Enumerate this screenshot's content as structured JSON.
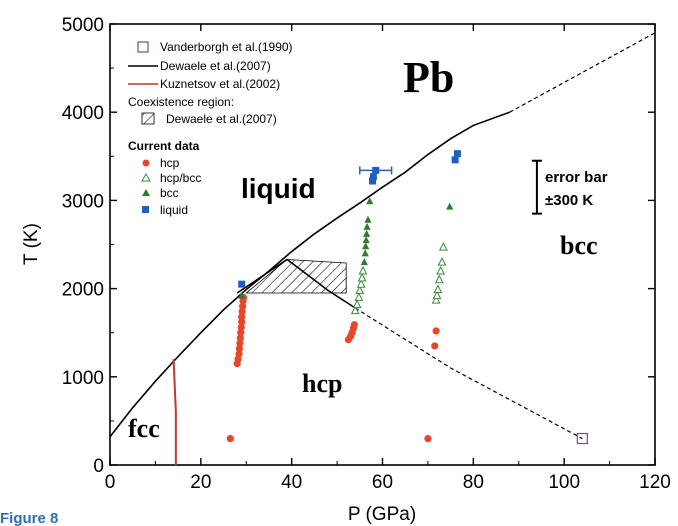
{
  "caption": "Figure 8",
  "chart_data": {
    "type": "scatter",
    "xlabel": "P (GPa)",
    "ylabel": "T (K)",
    "xlim": [
      0,
      120
    ],
    "ylim": [
      0,
      5000
    ],
    "x_ticks": [
      "0",
      "20",
      "40",
      "60",
      "80",
      "100",
      "120"
    ],
    "y_ticks": [
      "0",
      "1000",
      "2000",
      "3000",
      "4000",
      "5000"
    ],
    "element_label": "Pb",
    "phase_labels": [
      "liquid",
      "hcp",
      "bcc",
      "fcc"
    ],
    "error_bar": {
      "label_line1": "error bar",
      "label_line2": "±300 K",
      "half_range": 300,
      "x": 94,
      "y": 3150
    },
    "legend": {
      "position": "top-left",
      "vanderborgh": "Vanderborgh et al.(1990)",
      "dewaele": "Dewaele et al.(2007)",
      "kuznetsov": "Kuznetsov et al.(2002)",
      "coexistence_title": "Coexistence region:",
      "coexistence": "Dewaele et al.(2007)",
      "current_title": "Current data",
      "hcp": "hcp",
      "hcp_bcc": "hcp/bcc",
      "bcc": "bcc",
      "liquid": "liquid"
    },
    "colors": {
      "hcp": "#e8452a",
      "hcp_bcc": "#3a8a3a",
      "bcc": "#2e7d2e",
      "liquid": "#1f5fbf",
      "kuznetsov": "#c0392b",
      "vanderborgh": "#7a4a8a"
    },
    "series": [
      {
        "name": "Dewaele et al.(2007)",
        "style": "melting_line",
        "points": [
          [
            0,
            320
          ],
          [
            5,
            650
          ],
          [
            10,
            950
          ],
          [
            15,
            1230
          ],
          [
            20,
            1500
          ],
          [
            25,
            1760
          ],
          [
            30,
            1990
          ],
          [
            35,
            2200
          ],
          [
            40,
            2420
          ],
          [
            45,
            2620
          ],
          [
            50,
            2800
          ],
          [
            55,
            2970
          ],
          [
            60,
            3150
          ],
          [
            65,
            3320
          ],
          [
            70,
            3520
          ],
          [
            75,
            3700
          ],
          [
            80,
            3850
          ],
          [
            88,
            4000
          ]
        ]
      },
      {
        "name": "Dewaele et al.(2007)",
        "style": "melting_extrapolated",
        "points": [
          [
            88,
            4000
          ],
          [
            120,
            4900
          ]
        ]
      },
      {
        "name": "hcp-bcc boundary",
        "style": "phase_line",
        "points": [
          [
            28,
            1950
          ],
          [
            39,
            2330
          ],
          [
            48,
            1980
          ],
          [
            54,
            1780
          ]
        ]
      },
      {
        "name": "hcp-bcc boundary (extrapolated)",
        "style": "phase_dashed",
        "points": [
          [
            54,
            1780
          ],
          [
            75,
            1100
          ],
          [
            104,
            300
          ]
        ]
      },
      {
        "name": "Kuznetsov et al.(2002)",
        "style": "fcc_hcp_line",
        "points": [
          [
            14,
            1200
          ],
          [
            14.5,
            600
          ],
          [
            14.5,
            0
          ]
        ]
      },
      {
        "name": "Vanderborgh et al.(1990)",
        "marker": "square_open",
        "points": [
          [
            104,
            300
          ]
        ]
      },
      {
        "name": "hcp",
        "marker": "circle",
        "points": [
          [
            26.5,
            300
          ],
          [
            70,
            300
          ],
          [
            28,
            1150
          ],
          [
            28.2,
            1200
          ],
          [
            28.4,
            1260
          ],
          [
            28.5,
            1320
          ],
          [
            28.6,
            1380
          ],
          [
            28.7,
            1440
          ],
          [
            28.8,
            1500
          ],
          [
            28.9,
            1560
          ],
          [
            29,
            1620
          ],
          [
            29,
            1680
          ],
          [
            29.1,
            1740
          ],
          [
            29.2,
            1800
          ],
          [
            29.3,
            1860
          ],
          [
            29.4,
            1900
          ],
          [
            52.5,
            1420
          ],
          [
            53,
            1460
          ],
          [
            53.3,
            1500
          ],
          [
            53.6,
            1550
          ],
          [
            53.8,
            1590
          ],
          [
            71.5,
            1350
          ],
          [
            71.8,
            1520
          ]
        ]
      },
      {
        "name": "hcp/bcc",
        "marker": "triangle_open",
        "points": [
          [
            54,
            1750
          ],
          [
            54.4,
            1820
          ],
          [
            54.8,
            1900
          ],
          [
            55,
            1980
          ],
          [
            55.3,
            2050
          ],
          [
            55.5,
            2120
          ],
          [
            55.7,
            2200
          ],
          [
            71.8,
            1870
          ],
          [
            72,
            1920
          ],
          [
            72.2,
            1990
          ],
          [
            72.5,
            2100
          ],
          [
            72.8,
            2200
          ],
          [
            73.1,
            2300
          ],
          [
            73.4,
            2470
          ]
        ]
      },
      {
        "name": "bcc",
        "marker": "triangle",
        "points": [
          [
            29,
            1920
          ],
          [
            56,
            2300
          ],
          [
            56.2,
            2400
          ],
          [
            56.3,
            2480
          ],
          [
            56.4,
            2550
          ],
          [
            56.5,
            2620
          ],
          [
            56.6,
            2700
          ],
          [
            56.8,
            2780
          ],
          [
            57.2,
            2990
          ],
          [
            74.8,
            2930
          ]
        ]
      },
      {
        "name": "liquid",
        "marker": "square",
        "points": [
          [
            29,
            2050
          ],
          [
            57.8,
            3220
          ],
          [
            58,
            3270
          ],
          [
            58.5,
            3340
          ],
          [
            76,
            3460
          ],
          [
            76.5,
            3530
          ]
        ]
      }
    ],
    "liquid_errorbar": {
      "x": 58.5,
      "y": 3340,
      "xerr": 3.5
    },
    "coexistence_region": [
      [
        30,
        1950
      ],
      [
        39,
        2330
      ],
      [
        52,
        2290
      ],
      [
        52,
        1950
      ]
    ]
  }
}
